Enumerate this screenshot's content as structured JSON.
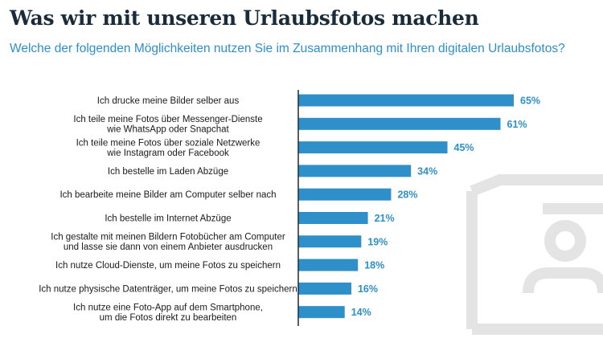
{
  "chart_data": {
    "type": "bar",
    "orientation": "horizontal",
    "title": "Was wir mit unseren Urlaubsfotos machen",
    "subtitle": "Welche der folgenden Möglichkeiten nutzen Sie im Zusammenhang mit Ihren digitalen Urlaubsfotos?",
    "categories": [
      [
        "Ich drucke meine Bilder selber aus"
      ],
      [
        "Ich teile meine Fotos über Messenger-Dienste",
        "wie WhatsApp oder Snapchat"
      ],
      [
        "Ich teile meine Fotos über soziale Netzwerke",
        "wie Instagram oder Facebook"
      ],
      [
        "Ich bestelle im Laden Abzüge"
      ],
      [
        "Ich bearbeite meine Bilder am Computer selber nach"
      ],
      [
        "Ich bestelle im Internet Abzüge"
      ],
      [
        "Ich gestalte mit meinen Bildern Fotobücher am Computer",
        "und lasse sie dann von einem Anbieter ausdrucken"
      ],
      [
        "Ich nutze Cloud-Dienste, um meine Fotos zu speichern"
      ],
      [
        "Ich nutze physische Datenträger, um meine Fotos zu speichern"
      ],
      [
        "Ich nutze eine Foto-App auf dem Smartphone,",
        "um die Fotos direkt zu bearbeiten"
      ]
    ],
    "values": [
      65,
      61,
      45,
      34,
      28,
      21,
      19,
      18,
      16,
      14
    ],
    "value_labels": [
      "65%",
      "61%",
      "45%",
      "34%",
      "28%",
      "21%",
      "19%",
      "18%",
      "16%",
      "14%"
    ],
    "unit": "%",
    "xlim": [
      0,
      65
    ],
    "grid": false,
    "colors": {
      "bar": "#2e8fc9",
      "title": "#1a2b3c",
      "subtitle": "#2e8fc9",
      "axis": "#1a2b3c"
    }
  }
}
